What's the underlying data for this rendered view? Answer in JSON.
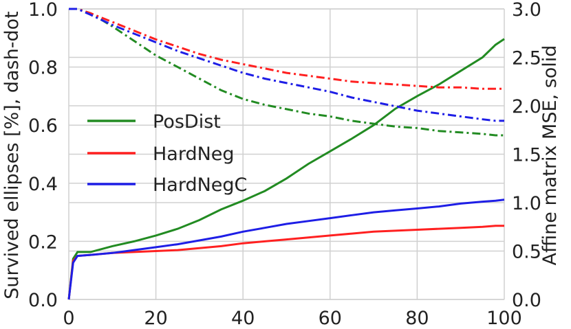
{
  "chart_data": {
    "type": "line",
    "xlabel": "",
    "ylabel_left": "Survived ellipses [%], dash-dot",
    "ylabel_right": "Affine matrix MSE, solid",
    "xlim": [
      0,
      100
    ],
    "ylim_left": [
      0.0,
      1.0
    ],
    "ylim_right": [
      0.0,
      3.0
    ],
    "xticks": [
      "0",
      "20",
      "40",
      "60",
      "80",
      "100"
    ],
    "yticks_left": [
      "0.0",
      "0.2",
      "0.4",
      "0.6",
      "0.8",
      "1.0"
    ],
    "yticks_right": [
      "0.0",
      "0.5",
      "1.0",
      "1.5",
      "2.0",
      "2.5",
      "3.0"
    ],
    "grid": true,
    "legend_placement": "center-left",
    "colors": {
      "PosDist": "#228B22",
      "HardNeg": "#FF2020",
      "HardNegC": "#1E1EE6"
    },
    "series": [
      {
        "name": "PosDist",
        "x": [
          0,
          1,
          2,
          5,
          10,
          15,
          20,
          25,
          30,
          35,
          40,
          45,
          50,
          55,
          60,
          65,
          70,
          75,
          80,
          85,
          90,
          95,
          98,
          100
        ],
        "mse": [
          0.0,
          0.42,
          0.49,
          0.49,
          0.55,
          0.6,
          0.66,
          0.73,
          0.82,
          0.93,
          1.02,
          1.12,
          1.25,
          1.4,
          1.53,
          1.66,
          1.8,
          1.97,
          2.1,
          2.22,
          2.36,
          2.5,
          2.63,
          2.69
        ],
        "survived": [
          1.0,
          1.0,
          1.0,
          0.985,
          0.94,
          0.89,
          0.84,
          0.8,
          0.76,
          0.72,
          0.69,
          0.67,
          0.655,
          0.64,
          0.63,
          0.615,
          0.605,
          0.595,
          0.59,
          0.58,
          0.575,
          0.57,
          0.565,
          0.565
        ]
      },
      {
        "name": "HardNeg",
        "x": [
          0,
          1,
          2,
          5,
          10,
          15,
          20,
          25,
          30,
          35,
          40,
          45,
          50,
          55,
          60,
          65,
          70,
          75,
          80,
          85,
          90,
          95,
          98,
          100
        ],
        "mse": [
          0.0,
          0.4,
          0.45,
          0.46,
          0.48,
          0.49,
          0.5,
          0.51,
          0.53,
          0.55,
          0.58,
          0.6,
          0.62,
          0.64,
          0.66,
          0.68,
          0.7,
          0.71,
          0.72,
          0.73,
          0.74,
          0.75,
          0.76,
          0.76
        ],
        "survived": [
          1.0,
          1.0,
          1.0,
          0.985,
          0.955,
          0.925,
          0.895,
          0.87,
          0.845,
          0.825,
          0.81,
          0.795,
          0.78,
          0.77,
          0.76,
          0.75,
          0.745,
          0.74,
          0.735,
          0.73,
          0.73,
          0.725,
          0.725,
          0.725
        ]
      },
      {
        "name": "HardNegC",
        "x": [
          0,
          1,
          2,
          5,
          10,
          15,
          20,
          25,
          30,
          35,
          40,
          45,
          50,
          55,
          60,
          65,
          70,
          75,
          80,
          85,
          90,
          95,
          98,
          100
        ],
        "mse": [
          0.0,
          0.38,
          0.45,
          0.46,
          0.48,
          0.51,
          0.54,
          0.57,
          0.61,
          0.65,
          0.7,
          0.74,
          0.78,
          0.81,
          0.84,
          0.87,
          0.9,
          0.92,
          0.94,
          0.96,
          0.99,
          1.01,
          1.02,
          1.03
        ],
        "survived": [
          1.0,
          1.0,
          1.0,
          0.98,
          0.945,
          0.915,
          0.885,
          0.855,
          0.83,
          0.805,
          0.78,
          0.76,
          0.745,
          0.73,
          0.715,
          0.695,
          0.68,
          0.665,
          0.65,
          0.64,
          0.63,
          0.62,
          0.615,
          0.615
        ]
      }
    ]
  }
}
